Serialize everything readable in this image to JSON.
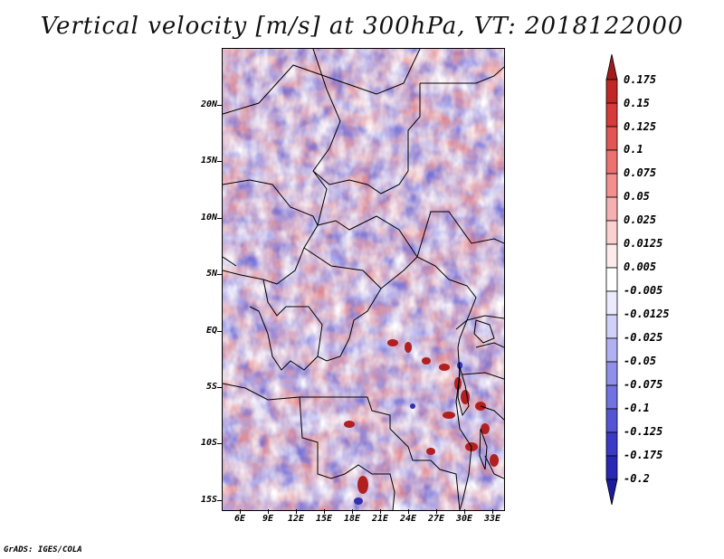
{
  "title": "Vertical velocity [m/s] at 300hPa, VT: 2018122000",
  "credit": "GrADS: IGES/COLA",
  "lat_labels": [
    "20N",
    "15N",
    "10N",
    "5N",
    "EQ",
    "5S",
    "10S",
    "15S"
  ],
  "lon_labels": [
    "6E",
    "9E",
    "12E",
    "15E",
    "18E",
    "21E",
    "24E",
    "27E",
    "30E",
    "33E"
  ],
  "colorbar": {
    "labels": [
      "0.175",
      "0.15",
      "0.125",
      "0.1",
      "0.075",
      "0.05",
      "0.025",
      "0.0125",
      "0.005",
      "-0.005",
      "-0.0125",
      "-0.025",
      "-0.05",
      "-0.075",
      "-0.1",
      "-0.125",
      "-0.175",
      "-0.2"
    ],
    "colors": [
      "#a01c1c",
      "#c02828",
      "#d63a3a",
      "#e25555",
      "#ec7272",
      "#f29090",
      "#f6b0b0",
      "#fad0d0",
      "#fdebeb",
      "#ffffff",
      "#ebebfd",
      "#d0d0f8",
      "#b0b0f2",
      "#9090ea",
      "#7272e0",
      "#5555d4",
      "#3a3ac6",
      "#2828b4",
      "#1c1ca0"
    ]
  }
}
